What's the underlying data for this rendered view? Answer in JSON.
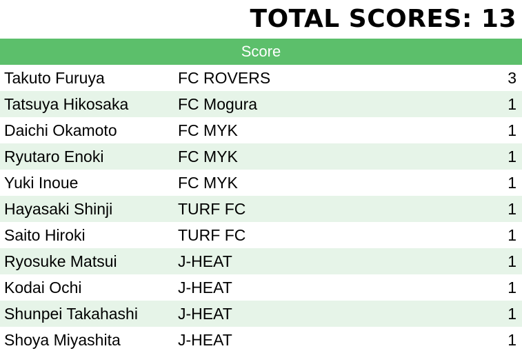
{
  "title": "TOTAL SCORES: 13",
  "header": {
    "label": "Score"
  },
  "rows": [
    {
      "name": "Takuto Furuya",
      "team": "FC ROVERS",
      "score": "3"
    },
    {
      "name": "Tatsuya Hikosaka",
      "team": "FC Mogura",
      "score": "1"
    },
    {
      "name": "Daichi Okamoto",
      "team": "FC MYK",
      "score": "1"
    },
    {
      "name": "Ryutaro Enoki",
      "team": "FC MYK",
      "score": "1"
    },
    {
      "name": "Yuki Inoue",
      "team": "FC MYK",
      "score": "1"
    },
    {
      "name": "Hayasaki Shinji",
      "team": "TURF FC",
      "score": "1"
    },
    {
      "name": "Saito Hiroki",
      "team": "TURF FC",
      "score": "1"
    },
    {
      "name": "Ryosuke Matsui",
      "team": "J-HEAT",
      "score": "1"
    },
    {
      "name": "Kodai Ochi",
      "team": "J-HEAT",
      "score": "1"
    },
    {
      "name": "Shunpei Takahashi",
      "team": "J-HEAT",
      "score": "1"
    },
    {
      "name": "Shoya Miyashita",
      "team": "J-HEAT",
      "score": "1"
    }
  ],
  "colors": {
    "header_bg": "#5cbf6b",
    "header_text": "#ffffff",
    "alt_row_bg": "#e6f4e8",
    "row_bg": "#ffffff"
  }
}
